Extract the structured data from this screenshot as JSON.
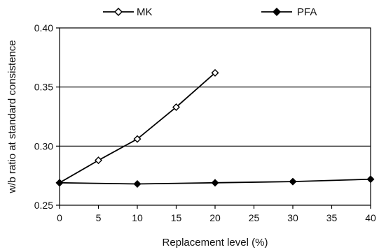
{
  "chart_data": {
    "type": "line",
    "title": "",
    "xlabel": "Replacement level (%)",
    "ylabel": "w/b ratio at standard consistence",
    "xlim": [
      0,
      40
    ],
    "ylim": [
      0.25,
      0.4
    ],
    "x_ticks": [
      "0",
      "5",
      "10",
      "15",
      "20",
      "25",
      "30",
      "35",
      "40"
    ],
    "y_ticks": [
      "0.25",
      "0.30",
      "0.35",
      "0.40"
    ],
    "grid": "horizontal major lines",
    "legend_position": "top",
    "series": [
      {
        "name": "MK",
        "marker": "open-diamond",
        "color": "#000000",
        "x": [
          0,
          5,
          10,
          15,
          20
        ],
        "y": [
          0.269,
          0.288,
          0.306,
          0.333,
          0.362
        ]
      },
      {
        "name": "PFA",
        "marker": "filled-diamond",
        "color": "#000000",
        "x": [
          0,
          10,
          20,
          30,
          40
        ],
        "y": [
          0.269,
          0.268,
          0.269,
          0.27,
          0.272
        ]
      }
    ]
  }
}
